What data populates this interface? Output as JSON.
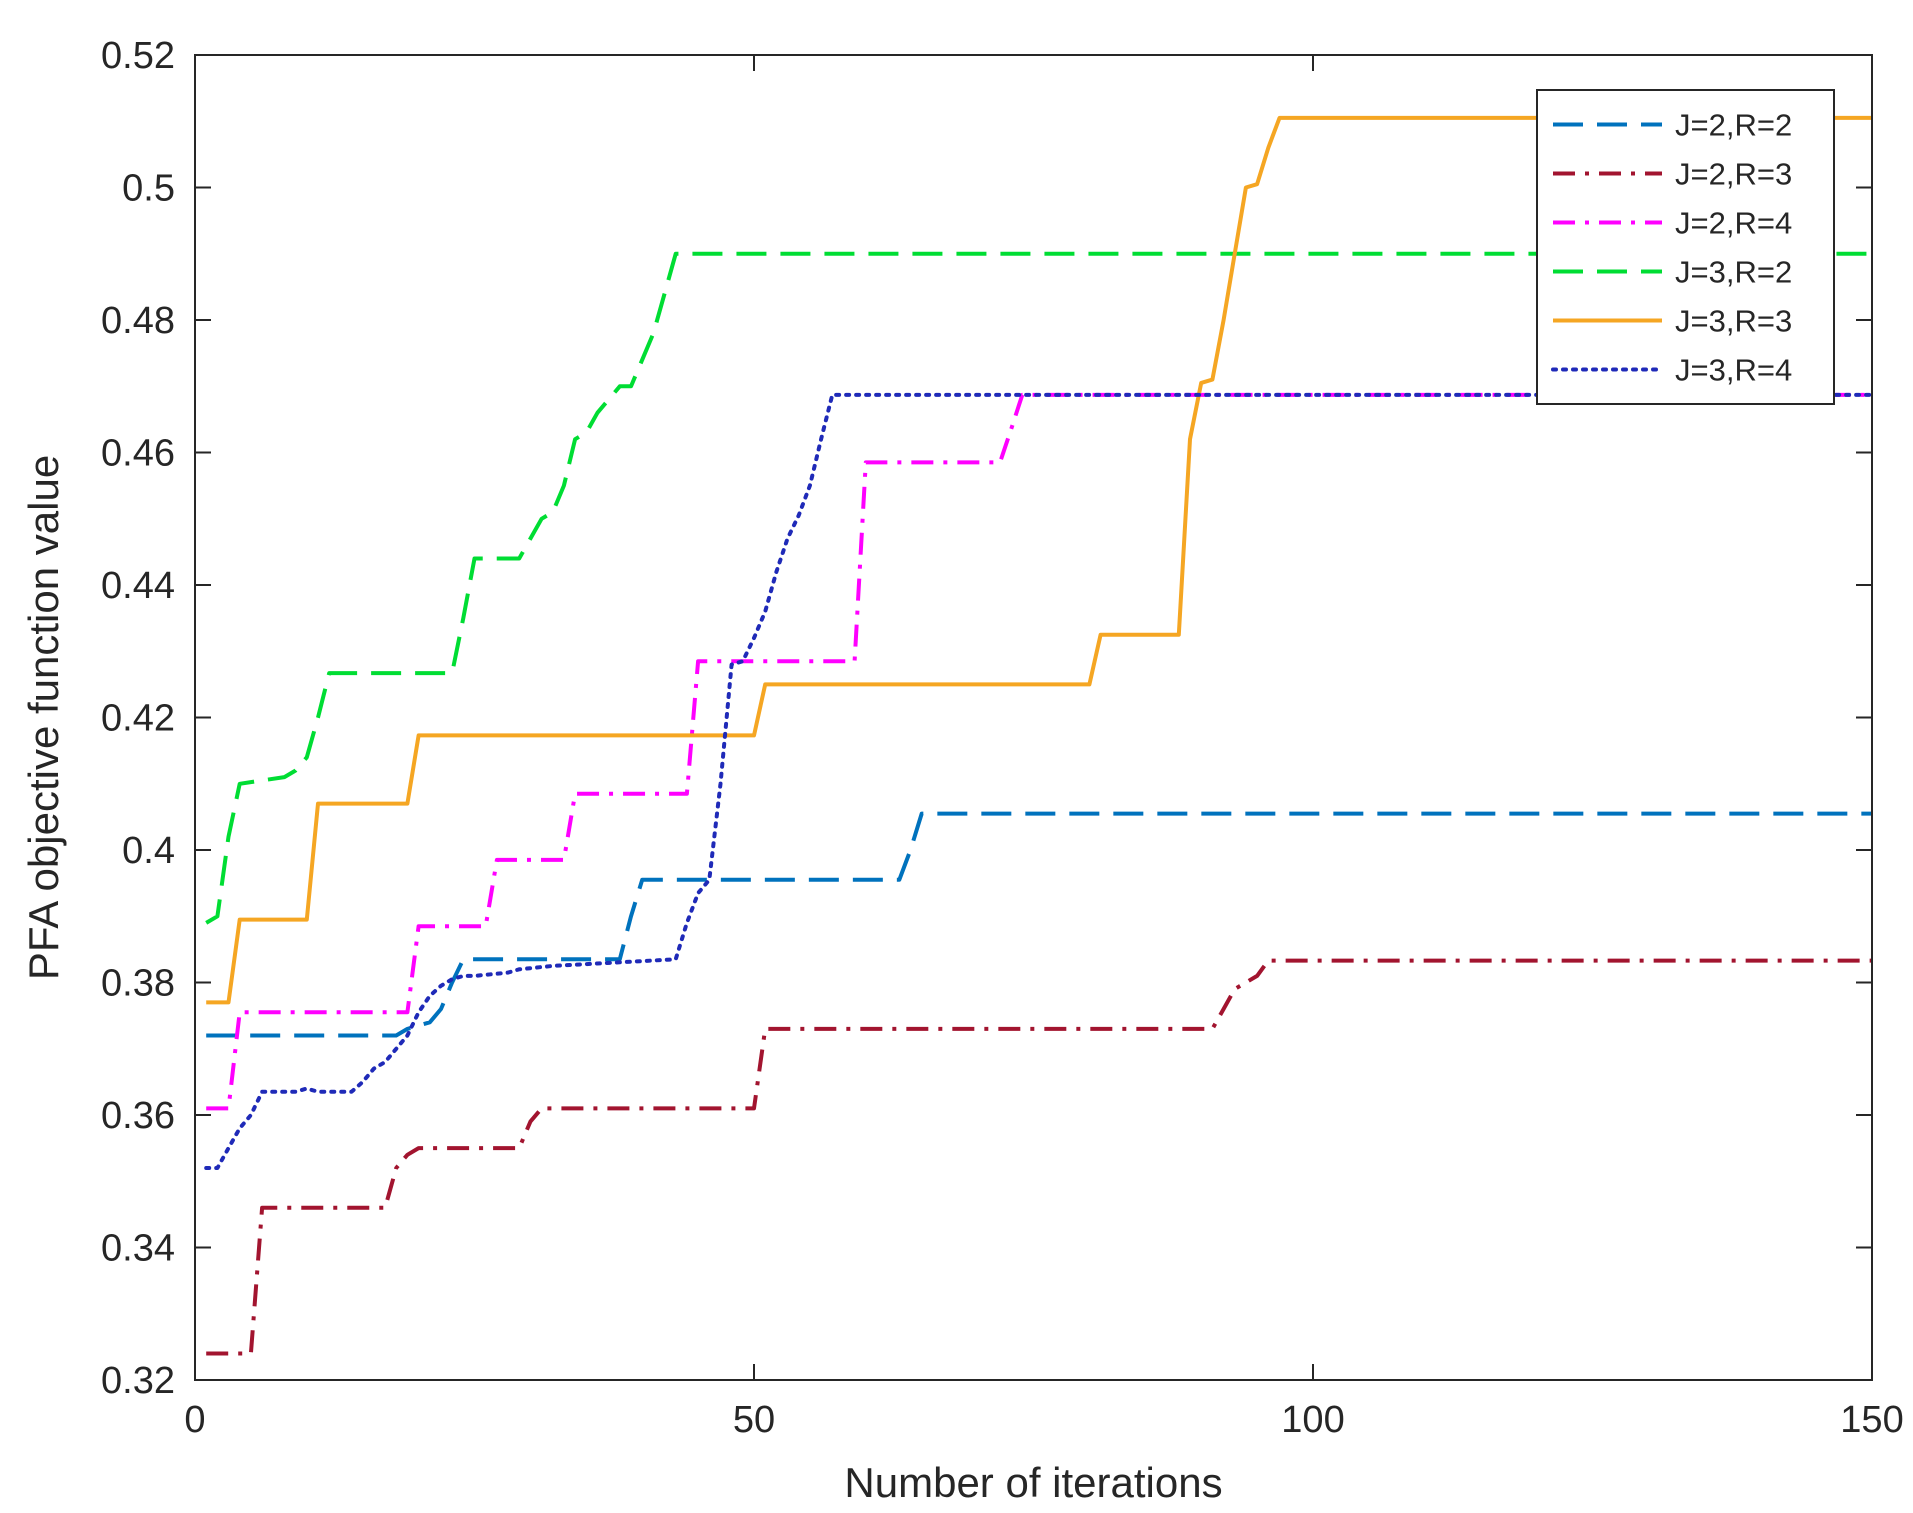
{
  "chart_data": {
    "type": "line",
    "title": "",
    "xlabel": "Number of iterations",
    "ylabel": "PFA objective function value",
    "xlim": [
      0,
      150
    ],
    "ylim": [
      0.32,
      0.52
    ],
    "xticks": [
      0,
      50,
      100,
      150
    ],
    "xtick_labels": [
      "0",
      "50",
      "100",
      "150"
    ],
    "yticks": [
      0.32,
      0.34,
      0.36,
      0.38,
      0.4,
      0.42,
      0.44,
      0.46,
      0.48,
      0.5,
      0.52
    ],
    "ytick_labels": [
      "0.32",
      "0.34",
      "0.36",
      "0.38",
      "0.4",
      "0.42",
      "0.44",
      "0.46",
      "0.48",
      "0.5",
      "0.52"
    ],
    "grid": false,
    "legend_position": "top-right",
    "series": [
      {
        "name": "J=2,R=2",
        "color": "#0072BD",
        "style": "dashed",
        "x": [
          1,
          18,
          19,
          21,
          22,
          23,
          24,
          38,
          39,
          40,
          63,
          64,
          65,
          150
        ],
        "y": [
          0.372,
          0.372,
          0.373,
          0.374,
          0.376,
          0.38,
          0.3835,
          0.3835,
          0.39,
          0.3955,
          0.3955,
          0.4,
          0.4055,
          0.4055
        ]
      },
      {
        "name": "J=2,R=3",
        "color": "#A2142F",
        "style": "dashdot",
        "x": [
          1,
          5,
          6,
          17,
          18,
          19,
          20,
          29,
          30,
          31,
          50,
          51,
          52,
          91,
          92,
          93,
          94,
          95,
          96,
          150
        ],
        "y": [
          0.324,
          0.324,
          0.346,
          0.346,
          0.352,
          0.354,
          0.355,
          0.355,
          0.359,
          0.361,
          0.361,
          0.373,
          0.373,
          0.373,
          0.376,
          0.379,
          0.38,
          0.381,
          0.3833,
          0.3833
        ]
      },
      {
        "name": "J=2,R=4",
        "color": "#FF00FF",
        "style": "dashdot",
        "x": [
          1,
          3,
          4,
          19,
          20,
          26,
          27,
          33,
          34,
          44,
          45,
          59,
          60,
          72,
          73,
          74,
          150
        ],
        "y": [
          0.361,
          0.361,
          0.3755,
          0.3755,
          0.3885,
          0.3885,
          0.3985,
          0.3985,
          0.4085,
          0.4085,
          0.4285,
          0.4285,
          0.4585,
          0.4585,
          0.4635,
          0.4687,
          0.4687
        ]
      },
      {
        "name": "J=3,R=2",
        "color": "#00DD33",
        "style": "dashed",
        "x": [
          1,
          2,
          3,
          4,
          8,
          9,
          10,
          11,
          12,
          23,
          24,
          25,
          29,
          30,
          31,
          32,
          33,
          34,
          35,
          36,
          38,
          39,
          40,
          41,
          42,
          43,
          150
        ],
        "y": [
          0.389,
          0.39,
          0.402,
          0.41,
          0.411,
          0.412,
          0.414,
          0.42,
          0.4267,
          0.4267,
          0.435,
          0.444,
          0.444,
          0.447,
          0.45,
          0.451,
          0.455,
          0.462,
          0.463,
          0.466,
          0.47,
          0.47,
          0.474,
          0.478,
          0.484,
          0.49,
          0.49
        ]
      },
      {
        "name": "J=3,R=3",
        "color": "#F5A623",
        "style": "solid",
        "x": [
          1,
          3,
          4,
          10,
          11,
          19,
          20,
          50,
          51,
          80,
          81,
          88,
          89,
          90,
          91,
          92,
          93,
          94,
          95,
          96,
          97,
          150
        ],
        "y": [
          0.377,
          0.377,
          0.3895,
          0.3895,
          0.407,
          0.407,
          0.4173,
          0.4173,
          0.425,
          0.425,
          0.4325,
          0.4325,
          0.462,
          0.4705,
          0.471,
          0.48,
          0.49,
          0.5,
          0.5005,
          0.506,
          0.5105,
          0.5105
        ]
      },
      {
        "name": "J=3,R=4",
        "color": "#1F2AB8",
        "style": "dotted",
        "x": [
          1,
          2,
          3,
          4,
          5,
          6,
          9,
          10,
          11,
          14,
          15,
          16,
          17,
          18,
          19,
          20,
          21,
          22,
          23,
          24,
          25,
          28,
          29,
          32,
          43,
          44,
          45,
          46,
          47,
          48,
          49,
          50,
          51,
          52,
          53,
          54,
          55,
          56,
          57,
          150
        ],
        "y": [
          0.352,
          0.352,
          0.355,
          0.358,
          0.36,
          0.3635,
          0.3635,
          0.364,
          0.3635,
          0.3635,
          0.365,
          0.367,
          0.368,
          0.37,
          0.372,
          0.3755,
          0.378,
          0.3795,
          0.3805,
          0.381,
          0.381,
          0.3815,
          0.382,
          0.3825,
          0.3835,
          0.389,
          0.3935,
          0.3955,
          0.41,
          0.428,
          0.4285,
          0.432,
          0.436,
          0.442,
          0.447,
          0.4505,
          0.455,
          0.462,
          0.4687,
          0.4687
        ]
      }
    ]
  }
}
